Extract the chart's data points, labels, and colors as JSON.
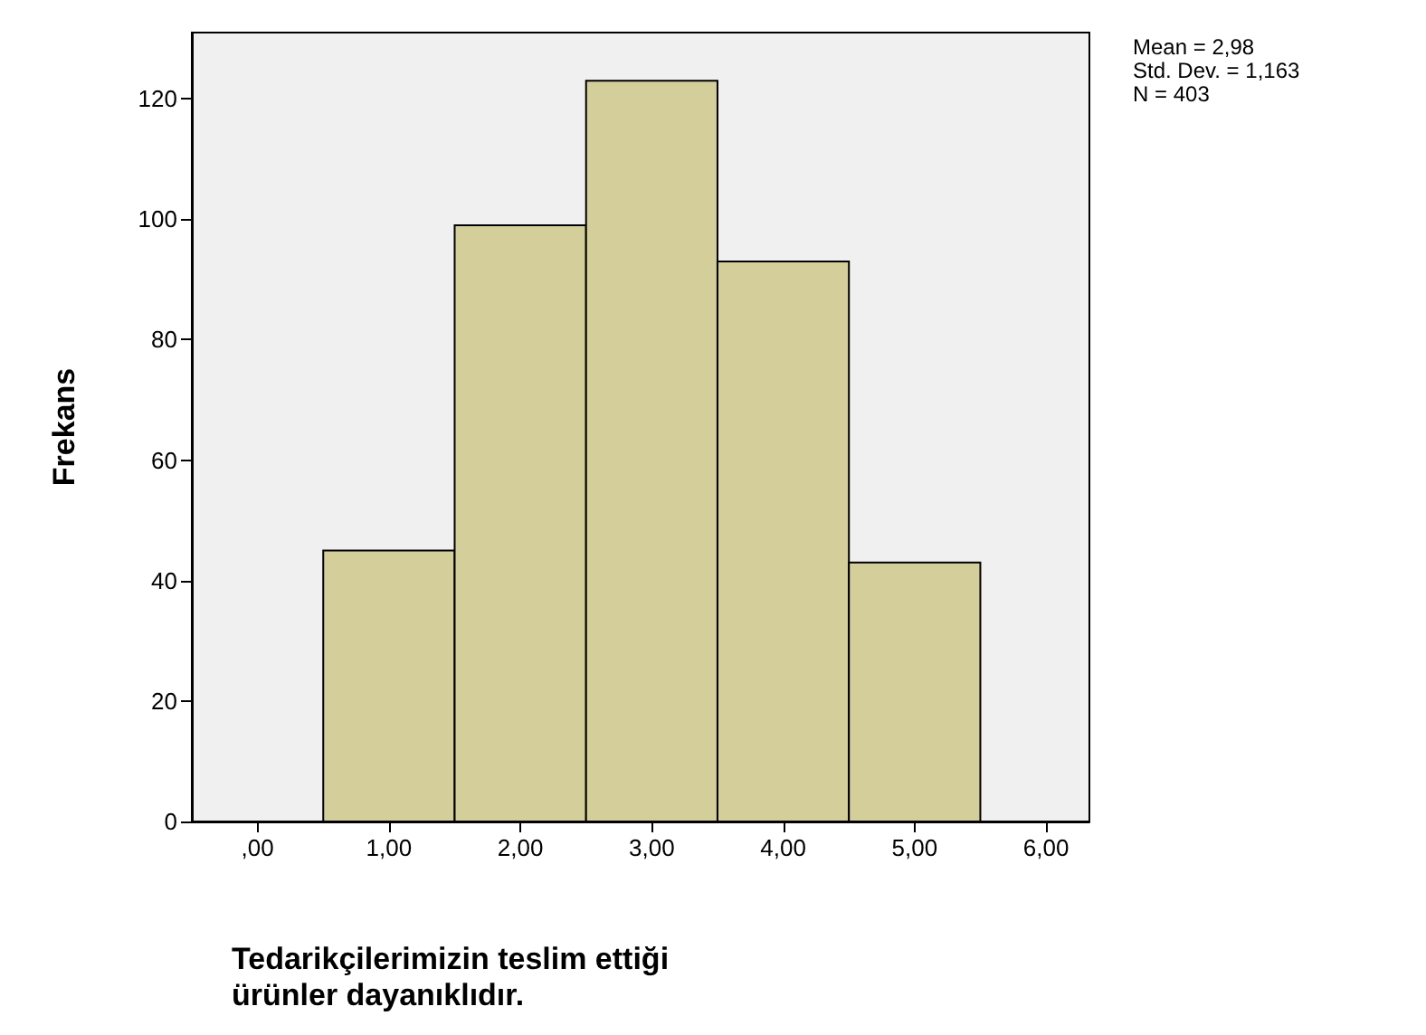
{
  "chart_data": {
    "type": "histogram",
    "xlabel": "Tedarikçilerimizin teslim ettiği ürünler dayanıklıdır.",
    "ylabel": "Frekans",
    "bins": [
      0.5,
      1.5,
      2.5,
      3.5,
      4.5,
      5.5
    ],
    "values": [
      45,
      99,
      123,
      93,
      43
    ],
    "color": "#d3ce9a",
    "xlim": [
      -0.5,
      6.33
    ],
    "xticks": [
      {
        "value": 0,
        "label": ",00"
      },
      {
        "value": 1,
        "label": "1,00"
      },
      {
        "value": 2,
        "label": "2,00"
      },
      {
        "value": 3,
        "label": "3,00"
      },
      {
        "value": 4,
        "label": "4,00"
      },
      {
        "value": 5,
        "label": "5,00"
      },
      {
        "value": 6,
        "label": "6,00"
      }
    ],
    "ylim": [
      0,
      131
    ],
    "yticks": [
      0,
      20,
      40,
      60,
      80,
      100,
      120
    ],
    "grid": false,
    "annotations": [
      "Mean = 2,98",
      "Std. Dev. = 1,163",
      "N = 403"
    ]
  }
}
